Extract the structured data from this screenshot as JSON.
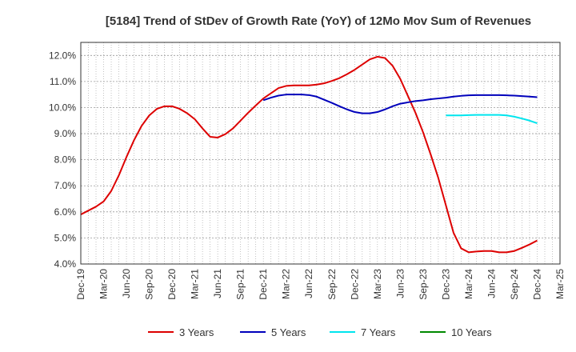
{
  "chart_data": {
    "type": "line",
    "title": "[5184]  Trend of StDev of Growth Rate (YoY) of 12Mo Mov Sum of Revenues",
    "xlabel": "",
    "ylabel": "",
    "ylim": [
      4.0,
      12.5
    ],
    "yticks": [
      4.0,
      5.0,
      6.0,
      7.0,
      8.0,
      9.0,
      10.0,
      11.0,
      12.0
    ],
    "ytick_labels": [
      "4.0%",
      "5.0%",
      "6.0%",
      "7.0%",
      "8.0%",
      "9.0%",
      "10.0%",
      "11.0%",
      "12.0%"
    ],
    "x_tick_labels": [
      "Dec-19",
      "Mar-20",
      "Jun-20",
      "Sep-20",
      "Dec-20",
      "Mar-21",
      "Jun-21",
      "Sep-21",
      "Dec-21",
      "Mar-22",
      "Jun-22",
      "Sep-22",
      "Dec-22",
      "Mar-23",
      "Jun-23",
      "Sep-23",
      "Dec-23",
      "Mar-24",
      "Jun-24",
      "Sep-24",
      "Dec-24",
      "Mar-25"
    ],
    "x_range_months": [
      0,
      63
    ],
    "grid": true,
    "legend_position": "bottom",
    "series": [
      {
        "name": "3 Years",
        "color": "#dd0000",
        "x_months": [
          0,
          1,
          2,
          3,
          4,
          5,
          6,
          7,
          8,
          9,
          10,
          11,
          12,
          13,
          14,
          15,
          16,
          17,
          18,
          19,
          20,
          21,
          22,
          23,
          24,
          25,
          26,
          27,
          28,
          29,
          30,
          31,
          32,
          33,
          34,
          35,
          36,
          37,
          38,
          39,
          40,
          41,
          42,
          43,
          44,
          45,
          46,
          47,
          48,
          49,
          50,
          51,
          52,
          53,
          54,
          55,
          56,
          57,
          58,
          59,
          60
        ],
        "values": [
          5.9,
          6.05,
          6.2,
          6.4,
          6.8,
          7.4,
          8.1,
          8.75,
          9.3,
          9.7,
          9.95,
          10.05,
          10.05,
          9.95,
          9.78,
          9.55,
          9.2,
          8.88,
          8.85,
          8.98,
          9.2,
          9.5,
          9.8,
          10.08,
          10.35,
          10.55,
          10.75,
          10.83,
          10.85,
          10.85,
          10.85,
          10.88,
          10.93,
          11.02,
          11.13,
          11.28,
          11.45,
          11.65,
          11.85,
          11.95,
          11.9,
          11.6,
          11.1,
          10.45,
          9.8,
          9.05,
          8.2,
          7.3,
          6.25,
          5.2,
          4.6,
          4.45,
          4.48,
          4.5,
          4.5,
          4.45,
          4.45,
          4.5,
          4.62,
          4.75,
          4.9
        ]
      },
      {
        "name": "5 Years",
        "color": "#0000bb",
        "x_months": [
          24,
          25,
          26,
          27,
          28,
          29,
          30,
          31,
          32,
          33,
          34,
          35,
          36,
          37,
          38,
          39,
          40,
          41,
          42,
          43,
          44,
          45,
          46,
          47,
          48,
          49,
          50,
          51,
          52,
          53,
          54,
          55,
          56,
          57,
          58,
          59,
          60
        ],
        "values": [
          10.28,
          10.38,
          10.46,
          10.5,
          10.5,
          10.5,
          10.48,
          10.42,
          10.3,
          10.18,
          10.05,
          9.93,
          9.83,
          9.78,
          9.78,
          9.83,
          9.93,
          10.05,
          10.15,
          10.2,
          10.25,
          10.28,
          10.32,
          10.35,
          10.38,
          10.42,
          10.45,
          10.47,
          10.48,
          10.48,
          10.48,
          10.48,
          10.47,
          10.46,
          10.44,
          10.42,
          10.4
        ]
      },
      {
        "name": "7 Years",
        "color": "#00e5ee",
        "x_months": [
          48,
          49,
          50,
          51,
          52,
          53,
          54,
          55,
          56,
          57,
          58,
          59,
          60
        ],
        "values": [
          9.7,
          9.7,
          9.7,
          9.71,
          9.72,
          9.72,
          9.72,
          9.72,
          9.7,
          9.65,
          9.58,
          9.5,
          9.4
        ]
      },
      {
        "name": "10 Years",
        "color": "#008800",
        "x_months": [],
        "values": []
      }
    ]
  }
}
